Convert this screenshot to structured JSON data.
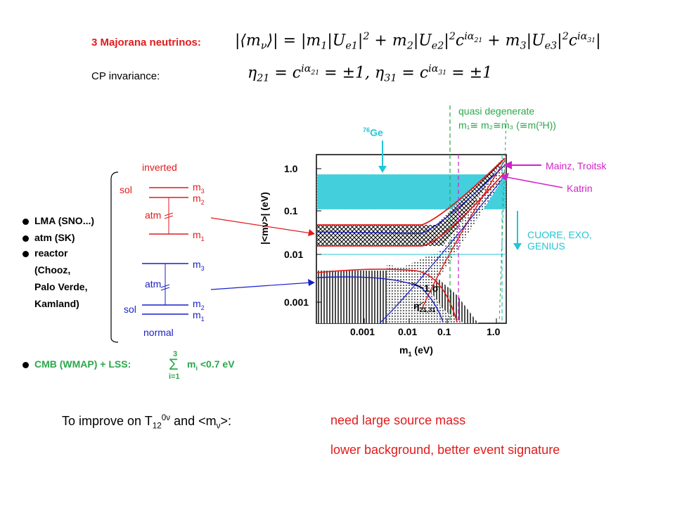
{
  "header": {
    "majorana_label": "3 Majorana neutrinos:",
    "mass_formula": "|⟨mν⟩| = |m₁|Uₑ₁|² + m₂|Uₑ₂|²c^{iα₂₁} + m₃|Uₑ₃|²c^{iα₃₁}|",
    "cp_label": "CP invariance:",
    "cp_formula": "η₂₁ = c^{iα₂₁} = ±1, η₃₁ = c^{iα₃₁} = ±1"
  },
  "hierarchy": {
    "inverted_label": "inverted",
    "normal_label": "normal",
    "inv_sol": "sol",
    "inv_atm": "atm",
    "inv_m3": "m",
    "inv_m3_sub": "3",
    "inv_m2": "m",
    "inv_m2_sub": "2",
    "inv_m1": "m",
    "inv_m1_sub": "1",
    "norm_m3": "m",
    "norm_m3_sub": "3",
    "norm_atm": "atm",
    "norm_sol": "sol",
    "norm_m2": "m",
    "norm_m2_sub": "2",
    "norm_m1": "m",
    "norm_m1_sub": "1"
  },
  "bullets": [
    {
      "label": "LMA (SNO...)"
    },
    {
      "label": "atm (SK)"
    },
    {
      "label": "reactor"
    },
    {
      "label": "(Chooz,"
    },
    {
      "label": "Palo Verde,"
    },
    {
      "label": "Kamland)"
    }
  ],
  "cmb": {
    "label": "CMB (WMAP) + LSS:",
    "sum_upper": "3",
    "sum_symbol": "Σ",
    "sum_lower": "i=1",
    "sum_term": "m",
    "sum_term_sub": "i",
    "sum_limit": "<0.7 eV"
  },
  "plot": {
    "quasi_title": "quasi degenerate",
    "quasi_formula": "m₁≅ m₂≅m₃ (≅m(³H))",
    "ge_sup": "76",
    "ge_label": "Ge",
    "mainz_label": "Mainz, Troitsk",
    "katrin_label": "Katrin",
    "cuore_line1": "CUORE, EXO,",
    "cuore_line2": "GENIUS",
    "sigma_label": "1 σ",
    "eta_label": "η",
    "eta_sub": "21,31",
    "ylabel": "|<mν>| (eV)",
    "xlabel_m": "m",
    "xlabel_sub": "1",
    "xlabel_unit": " (eV)",
    "xticks": [
      "0.001",
      "0.01",
      "0.1",
      "1.0"
    ],
    "yticks": [
      "1.0",
      "0.1",
      "0.01",
      "0.001"
    ]
  },
  "footer": {
    "improve_prefix": "To improve on T",
    "improve_sub": "12",
    "improve_sup": "0ν",
    "improve_mid": " and <m",
    "improve_sub2": "ν",
    "improve_end": ">:",
    "need_line": "need large source mass",
    "lower_line": "lower background, better event signature"
  },
  "colors": {
    "red": "#e11b1b",
    "blue": "#1a1fc8",
    "green": "#2aa84a",
    "magenta": "#d321c8",
    "cyan": "#22c7d6"
  }
}
